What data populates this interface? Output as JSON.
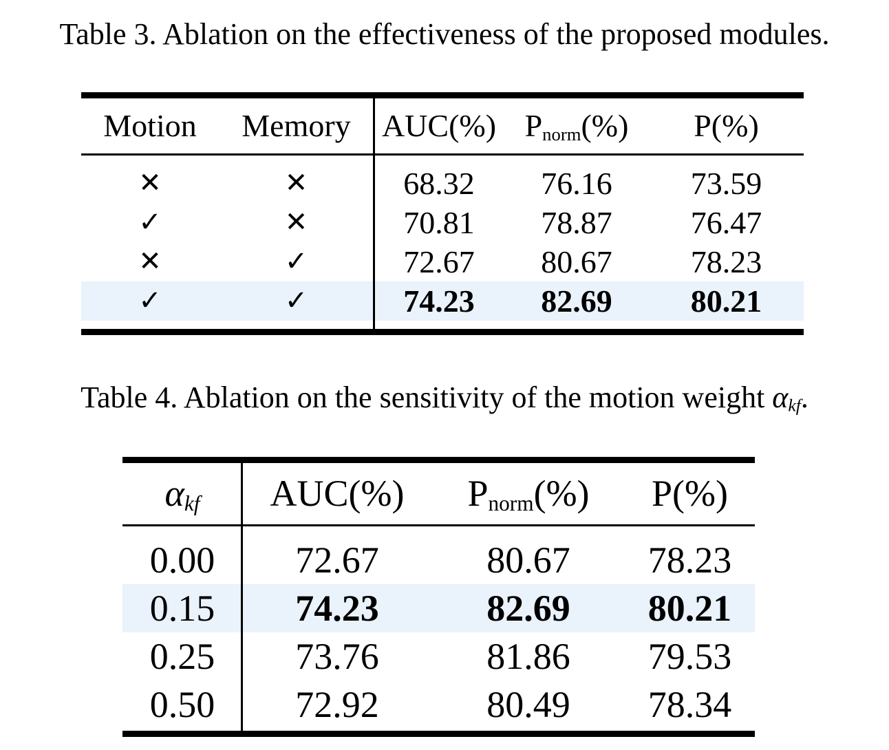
{
  "colors": {
    "highlight_row": "#eaf2fb",
    "text": "#000000",
    "background": "#ffffff"
  },
  "table3": {
    "caption": "Table 3. Ablation on the effectiveness of the proposed modules.",
    "header": {
      "motion": "Motion",
      "memory": "Memory",
      "auc": "AUC(%)",
      "pnorm_base": "P",
      "pnorm_sub": "norm",
      "pnorm_rest": "(%)",
      "p": "P(%)"
    },
    "rows": [
      {
        "motion": "✕",
        "memory": "✕",
        "auc": "68.32",
        "pnorm": "76.16",
        "p": "73.59"
      },
      {
        "motion": "✓",
        "memory": "✕",
        "auc": "70.81",
        "pnorm": "78.87",
        "p": "76.47"
      },
      {
        "motion": "✕",
        "memory": "✓",
        "auc": "72.67",
        "pnorm": "80.67",
        "p": "78.23"
      },
      {
        "motion": "✓",
        "memory": "✓",
        "auc": "74.23",
        "pnorm": "82.69",
        "p": "80.21"
      }
    ],
    "highlighted_row_index": 3
  },
  "table4": {
    "caption_prefix": "Table 4. Ablation on the sensitivity of the motion weight ",
    "caption_alpha": "α",
    "caption_alpha_sub": "kf",
    "caption_suffix": ".",
    "header": {
      "alpha": "α",
      "alpha_sub": "kf",
      "auc": "AUC(%)",
      "pnorm_base": "P",
      "pnorm_sub": "norm",
      "pnorm_rest": "(%)",
      "p": "P(%)"
    },
    "rows": [
      {
        "alpha": "0.00",
        "auc": "72.67",
        "pnorm": "80.67",
        "p": "78.23"
      },
      {
        "alpha": "0.15",
        "auc": "74.23",
        "pnorm": "82.69",
        "p": "80.21"
      },
      {
        "alpha": "0.25",
        "auc": "73.76",
        "pnorm": "81.86",
        "p": "79.53"
      },
      {
        "alpha": "0.50",
        "auc": "72.92",
        "pnorm": "80.49",
        "p": "78.34"
      }
    ],
    "highlighted_row_index": 1
  }
}
